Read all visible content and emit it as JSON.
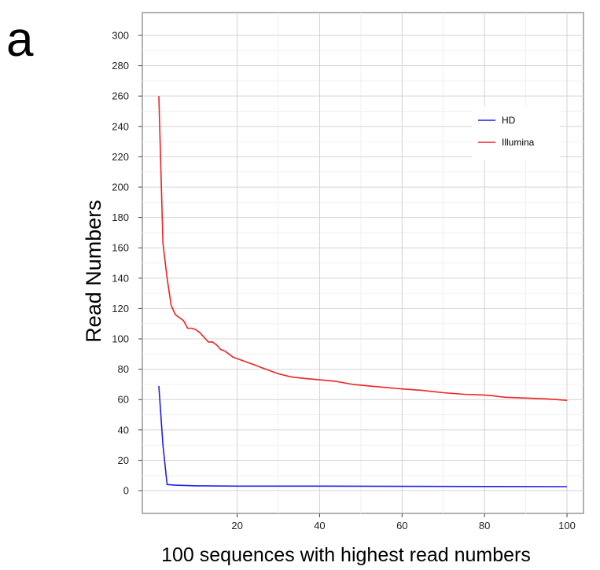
{
  "panel_label": "a",
  "chart_data": {
    "type": "line",
    "title": "",
    "xlabel": "100 sequences with highest read numbers",
    "ylabel": "Read Numbers",
    "xlim": [
      -3,
      104
    ],
    "ylim": [
      -15,
      315
    ],
    "x_ticks": [
      20,
      40,
      60,
      80,
      100
    ],
    "y_ticks": [
      0,
      20,
      40,
      60,
      80,
      100,
      120,
      140,
      160,
      180,
      200,
      220,
      240,
      260,
      280,
      300
    ],
    "grid": true,
    "legend_position": "top-right",
    "series": [
      {
        "name": "HD",
        "color": "#1f1fe8",
        "x": [
          1,
          2,
          3,
          5,
          10,
          20,
          40,
          60,
          80,
          100
        ],
        "y": [
          69,
          30,
          4,
          3.6,
          3.2,
          3,
          3,
          2.8,
          2.7,
          2.6
        ]
      },
      {
        "name": "Illumina",
        "color": "#ee2222",
        "x": [
          1,
          2,
          3,
          4,
          5,
          6,
          7,
          8,
          9,
          10,
          11,
          12,
          13,
          14,
          15,
          16,
          17,
          18,
          19,
          20,
          22,
          24,
          26,
          28,
          30,
          33,
          36,
          40,
          44,
          48,
          52,
          56,
          60,
          65,
          70,
          75,
          80,
          82,
          85,
          90,
          95,
          100
        ],
        "y": [
          260,
          163,
          140,
          122,
          116,
          114,
          112,
          107,
          107,
          106,
          104,
          101,
          98,
          98,
          96,
          93,
          92,
          90,
          88,
          87,
          85,
          83,
          81,
          79,
          77,
          75,
          74,
          73,
          72,
          70,
          69,
          68,
          67,
          66,
          64.5,
          63.5,
          63,
          62.5,
          61.5,
          61,
          60.5,
          59.5
        ]
      }
    ]
  }
}
